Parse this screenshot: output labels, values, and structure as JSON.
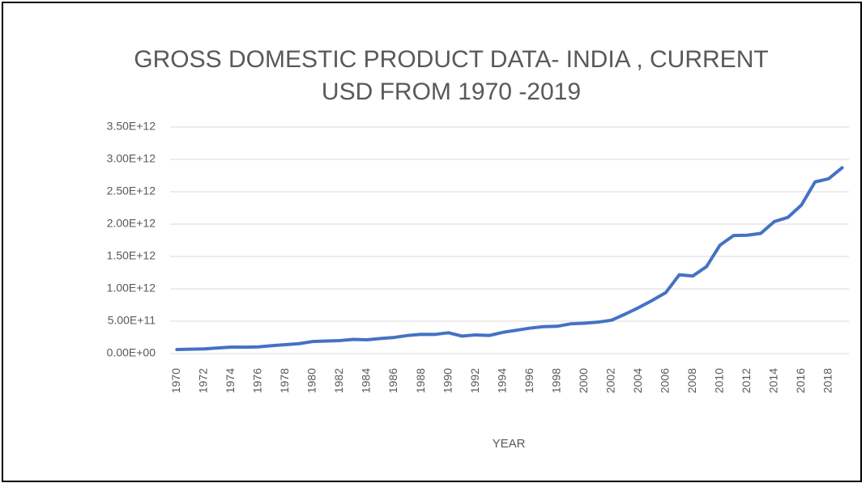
{
  "chart_data": {
    "type": "line",
    "title": [
      "GROSS DOMESTIC PRODUCT DATA- INDIA , CURRENT",
      "USD FROM 1970 -2019"
    ],
    "x_label": "YEAR",
    "categories": [
      "1970",
      null,
      "1972",
      null,
      "1974",
      null,
      "1976",
      null,
      "1978",
      null,
      "1980",
      null,
      "1982",
      null,
      "1984",
      null,
      "1986",
      null,
      "1988",
      null,
      "1990",
      null,
      "1992",
      null,
      "1994",
      null,
      "1996",
      null,
      "1998",
      null,
      "2000",
      null,
      "2002",
      null,
      "2004",
      null,
      "2006",
      null,
      "2008",
      null,
      "2010",
      null,
      "2012",
      null,
      "2014",
      null,
      "2016",
      null,
      "2018",
      null
    ],
    "series": [
      {
        "name": "GDP",
        "color": "#4472c4",
        "values": [
          62400000000,
          67400000000,
          71500000000,
          85500000000,
          99500000000,
          98500000000,
          102700000000,
          121500000000,
          137300000000,
          153000000000,
          186300000000,
          193500000000,
          200700000000,
          218300000000,
          212200000000,
          232500000000,
          249000000000,
          279000000000,
          296600000000,
          296000000000,
          321000000000,
          270100000000,
          288200000000,
          279300000000,
          327300000000,
          360300000000,
          392900000000,
          415900000000,
          421400000000,
          458800000000,
          468400000000,
          485400000000,
          514900000000,
          607700000000,
          709100000000,
          820400000000,
          940300000000,
          1216700000000,
          1198900000000,
          1341900000000,
          1675600000000,
          1823100000000,
          1827600000000,
          1856700000000,
          2039100000000,
          2103600000000,
          2294800000000,
          2651500000000,
          2701100000000,
          2870500000000
        ]
      }
    ],
    "ylim": [
      0,
      3500000000000
    ],
    "yticks": [
      {
        "value": 0,
        "label": "0.00E+00"
      },
      {
        "value": 500000000000,
        "label": "5.00E+11"
      },
      {
        "value": 1000000000000,
        "label": "1.00E+12"
      },
      {
        "value": 1500000000000,
        "label": "1.50E+12"
      },
      {
        "value": 2000000000000,
        "label": "2.00E+12"
      },
      {
        "value": 2500000000000,
        "label": "2.50E+12"
      },
      {
        "value": 3000000000000,
        "label": "3.00E+12"
      },
      {
        "value": 3500000000000,
        "label": "3.50E+12"
      }
    ],
    "grid": true
  }
}
